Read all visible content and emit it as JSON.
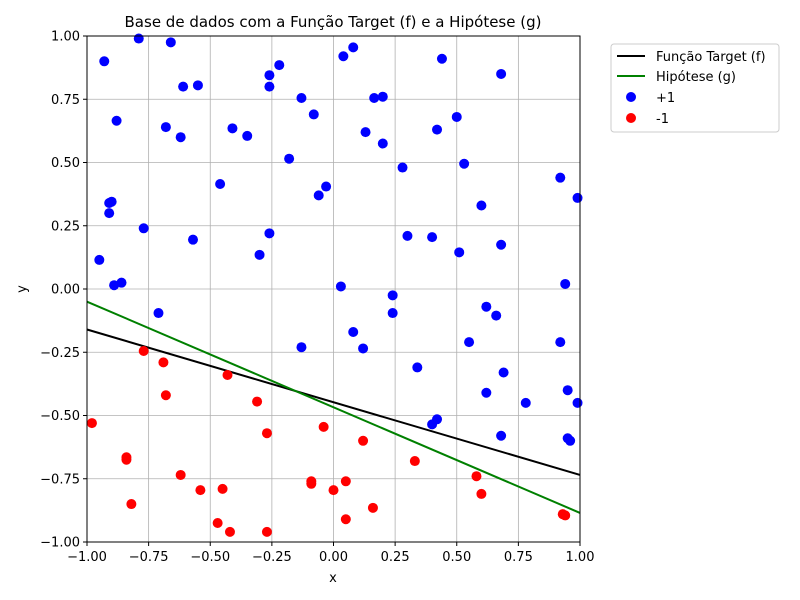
{
  "chart_data": {
    "type": "scatter",
    "title": "Base de dados com a Função Target (f) e a Hipótese (g)",
    "xlabel": "x",
    "ylabel": "y",
    "xlim": [
      -1.0,
      1.0
    ],
    "ylim": [
      -1.0,
      1.0
    ],
    "xticks": [
      -1.0,
      -0.75,
      -0.5,
      -0.25,
      0.0,
      0.25,
      0.5,
      0.75,
      1.0
    ],
    "yticks": [
      -1.0,
      -0.75,
      -0.5,
      -0.25,
      0.0,
      0.25,
      0.5,
      0.75,
      1.0
    ],
    "xtick_labels": [
      "−1.00",
      "−0.75",
      "−0.50",
      "−0.25",
      "0.00",
      "0.25",
      "0.50",
      "0.75",
      "1.00"
    ],
    "ytick_labels": [
      "−1.00",
      "−0.75",
      "−0.50",
      "−0.25",
      "0.00",
      "0.25",
      "0.50",
      "0.75",
      "1.00"
    ],
    "grid": true,
    "legend_position": "outside-top-right",
    "lines": [
      {
        "name": "Função Target (f)",
        "color": "#000000",
        "x": [
          -1.0,
          1.0
        ],
        "y": [
          -0.16,
          -0.735
        ]
      },
      {
        "name": "Hipótese (g)",
        "color": "#008000",
        "x": [
          -1.0,
          1.0
        ],
        "y": [
          -0.05,
          -0.885
        ]
      }
    ],
    "series": [
      {
        "name": "+1",
        "color": "#0000ff",
        "points": [
          [
            -0.79,
            0.99
          ],
          [
            -0.66,
            0.975
          ],
          [
            -0.93,
            0.9
          ],
          [
            -0.61,
            0.8
          ],
          [
            -0.55,
            0.805
          ],
          [
            -0.26,
            0.845
          ],
          [
            -0.22,
            0.885
          ],
          [
            -0.26,
            0.8
          ],
          [
            0.04,
            0.92
          ],
          [
            0.08,
            0.955
          ],
          [
            0.44,
            0.91
          ],
          [
            0.68,
            0.85
          ],
          [
            -0.88,
            0.665
          ],
          [
            -0.68,
            0.64
          ],
          [
            -0.41,
            0.635
          ],
          [
            -0.62,
            0.6
          ],
          [
            -0.35,
            0.605
          ],
          [
            -0.13,
            0.755
          ],
          [
            -0.08,
            0.69
          ],
          [
            0.165,
            0.755
          ],
          [
            0.2,
            0.76
          ],
          [
            0.13,
            0.62
          ],
          [
            0.2,
            0.575
          ],
          [
            0.42,
            0.63
          ],
          [
            0.5,
            0.68
          ],
          [
            -0.18,
            0.515
          ],
          [
            0.28,
            0.48
          ],
          [
            0.53,
            0.495
          ],
          [
            -0.46,
            0.415
          ],
          [
            -0.03,
            0.405
          ],
          [
            -0.06,
            0.37
          ],
          [
            -0.9,
            0.345
          ],
          [
            -0.91,
            0.34
          ],
          [
            -0.91,
            0.3
          ],
          [
            -0.77,
            0.24
          ],
          [
            -0.57,
            0.195
          ],
          [
            -0.26,
            0.22
          ],
          [
            0.3,
            0.21
          ],
          [
            0.4,
            0.205
          ],
          [
            0.6,
            0.33
          ],
          [
            0.68,
            0.175
          ],
          [
            0.92,
            0.44
          ],
          [
            0.99,
            0.36
          ],
          [
            -0.95,
            0.115
          ],
          [
            -0.3,
            0.135
          ],
          [
            0.51,
            0.145
          ],
          [
            -0.89,
            0.015
          ],
          [
            -0.86,
            0.025
          ],
          [
            0.03,
            0.01
          ],
          [
            0.24,
            -0.025
          ],
          [
            0.24,
            -0.095
          ],
          [
            0.62,
            -0.07
          ],
          [
            0.66,
            -0.105
          ],
          [
            0.94,
            0.02
          ],
          [
            -0.71,
            -0.095
          ],
          [
            0.08,
            -0.17
          ],
          [
            -0.13,
            -0.23
          ],
          [
            0.12,
            -0.235
          ],
          [
            0.55,
            -0.21
          ],
          [
            0.92,
            -0.21
          ],
          [
            0.34,
            -0.31
          ],
          [
            0.69,
            -0.33
          ],
          [
            0.62,
            -0.41
          ],
          [
            0.78,
            -0.45
          ],
          [
            0.95,
            -0.4
          ],
          [
            0.99,
            -0.45
          ],
          [
            0.42,
            -0.515
          ],
          [
            0.4,
            -0.535
          ],
          [
            0.68,
            -0.58
          ],
          [
            0.95,
            -0.59
          ],
          [
            0.96,
            -0.6
          ]
        ]
      },
      {
        "name": "-1",
        "color": "#ff0000",
        "points": [
          [
            -0.98,
            -0.53
          ],
          [
            -0.77,
            -0.245
          ],
          [
            -0.69,
            -0.29
          ],
          [
            -0.68,
            -0.42
          ],
          [
            -0.43,
            -0.34
          ],
          [
            -0.31,
            -0.445
          ],
          [
            -0.27,
            -0.57
          ],
          [
            -0.04,
            -0.545
          ],
          [
            -0.84,
            -0.665
          ],
          [
            -0.84,
            -0.675
          ],
          [
            -0.82,
            -0.85
          ],
          [
            -0.62,
            -0.735
          ],
          [
            -0.54,
            -0.795
          ],
          [
            -0.45,
            -0.79
          ],
          [
            -0.47,
            -0.925
          ],
          [
            -0.42,
            -0.96
          ],
          [
            -0.27,
            -0.96
          ],
          [
            -0.09,
            -0.76
          ],
          [
            -0.09,
            -0.77
          ],
          [
            0.0,
            -0.795
          ],
          [
            0.05,
            -0.76
          ],
          [
            0.05,
            -0.91
          ],
          [
            0.12,
            -0.6
          ],
          [
            0.16,
            -0.865
          ],
          [
            0.33,
            -0.68
          ],
          [
            0.58,
            -0.74
          ],
          [
            0.6,
            -0.81
          ],
          [
            0.93,
            -0.89
          ],
          [
            0.94,
            -0.895
          ]
        ]
      }
    ]
  }
}
